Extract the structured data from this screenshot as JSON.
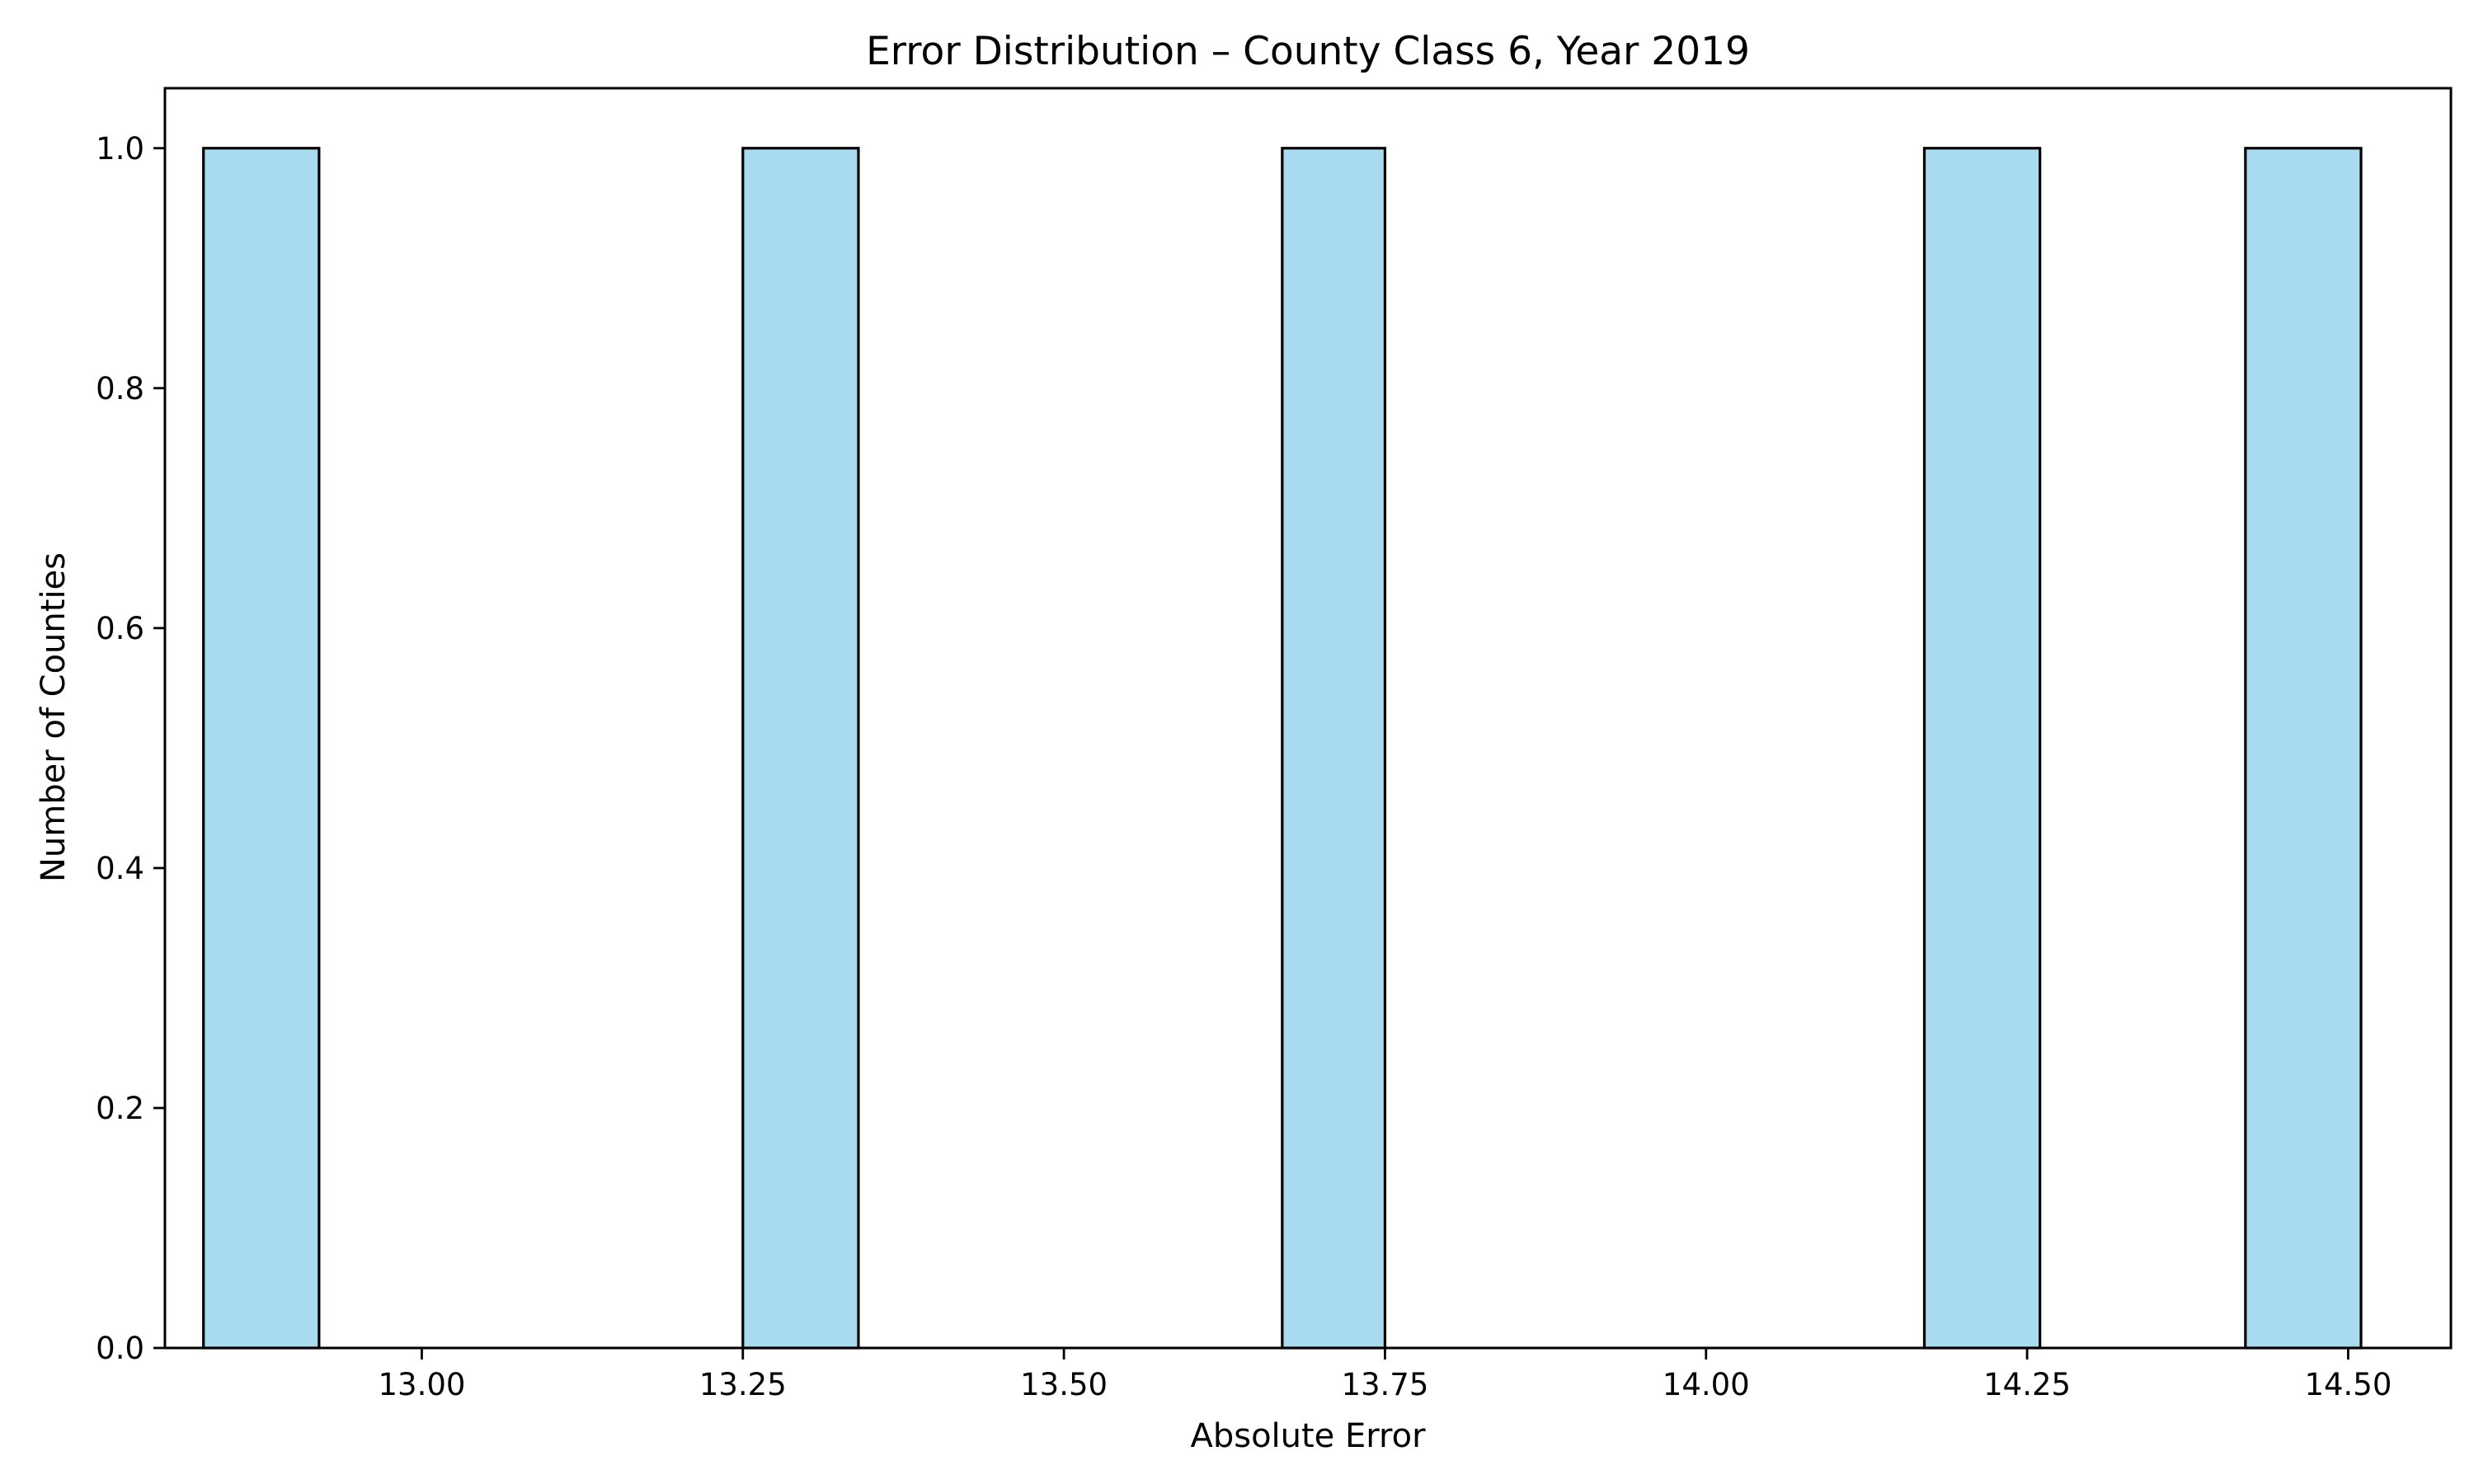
{
  "chart_data": {
    "type": "bar",
    "title": "Error Distribution – County Class 6, Year 2019",
    "xlabel": "Absolute Error",
    "ylabel": "Number of Counties",
    "xlim": [
      12.8,
      14.58
    ],
    "ylim": [
      0.0,
      1.05
    ],
    "xticks": [
      {
        "value": 13.0,
        "label": "13.00"
      },
      {
        "value": 13.25,
        "label": "13.25"
      },
      {
        "value": 13.5,
        "label": "13.50"
      },
      {
        "value": 13.75,
        "label": "13.75"
      },
      {
        "value": 14.0,
        "label": "14.00"
      },
      {
        "value": 14.25,
        "label": "14.25"
      },
      {
        "value": 14.5,
        "label": "14.50"
      }
    ],
    "yticks": [
      {
        "value": 0.0,
        "label": "0.0"
      },
      {
        "value": 0.2,
        "label": "0.2"
      },
      {
        "value": 0.4,
        "label": "0.4"
      },
      {
        "value": 0.6,
        "label": "0.6"
      },
      {
        "value": 0.8,
        "label": "0.8"
      },
      {
        "value": 1.0,
        "label": "1.0"
      }
    ],
    "bins": [
      {
        "x0": 12.83,
        "x1": 12.92,
        "value": 1
      },
      {
        "x0": 13.25,
        "x1": 13.34,
        "value": 1
      },
      {
        "x0": 13.67,
        "x1": 13.75,
        "value": 1
      },
      {
        "x0": 14.17,
        "x1": 14.26,
        "value": 1
      },
      {
        "x0": 14.42,
        "x1": 14.51,
        "value": 1
      }
    ],
    "bar_color": "#a8dbef",
    "edge_color": "#000000",
    "grid": false,
    "legend": "none"
  }
}
